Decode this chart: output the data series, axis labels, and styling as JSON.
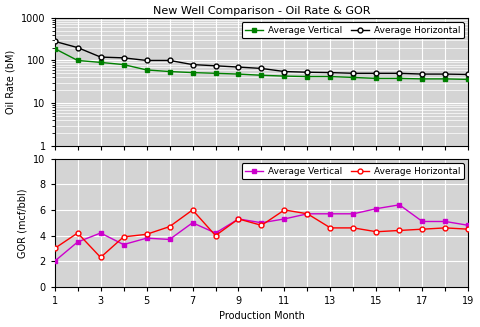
{
  "title": "New Well Comparison - Oil Rate & GOR",
  "months": [
    1,
    2,
    3,
    4,
    5,
    6,
    7,
    8,
    9,
    10,
    11,
    12,
    13,
    14,
    15,
    16,
    17,
    18,
    19
  ],
  "oil_vertical": [
    190,
    100,
    90,
    80,
    60,
    55,
    52,
    50,
    48,
    45,
    43,
    42,
    42,
    40,
    38,
    38,
    37,
    37,
    36
  ],
  "oil_horizontal": [
    280,
    200,
    120,
    115,
    100,
    100,
    80,
    75,
    70,
    65,
    55,
    53,
    52,
    50,
    50,
    50,
    48,
    48,
    47
  ],
  "gor_vertical": [
    2.0,
    3.5,
    4.2,
    3.3,
    3.8,
    3.7,
    5.0,
    4.2,
    5.3,
    5.0,
    5.3,
    5.7,
    5.7,
    5.7,
    6.1,
    6.4,
    5.1,
    5.1,
    4.8
  ],
  "gor_horizontal": [
    3.0,
    4.2,
    2.3,
    3.9,
    4.1,
    4.7,
    6.0,
    4.0,
    5.3,
    4.8,
    6.0,
    5.7,
    4.6,
    4.6,
    4.3,
    4.4,
    4.5,
    4.6,
    4.5
  ],
  "color_vertical": "#008000",
  "color_horizontal": "#000000",
  "color_gor_vertical": "#cc00cc",
  "color_gor_horizontal": "#ff0000",
  "oil_ylabel": "Oil Rate (bM)",
  "gor_ylabel": "GOR (mcf/bbl)",
  "xlabel": "Production Month",
  "xticks": [
    1,
    3,
    5,
    7,
    9,
    11,
    13,
    15,
    17,
    19
  ],
  "all_xticks": [
    1,
    2,
    3,
    4,
    5,
    6,
    7,
    8,
    9,
    10,
    11,
    12,
    13,
    14,
    15,
    16,
    17,
    18,
    19
  ],
  "oil_ylim": [
    1,
    1000
  ],
  "gor_ylim": [
    0,
    10
  ],
  "gor_yticks": [
    0,
    2,
    4,
    6,
    8,
    10
  ],
  "bg_color": "#d4d4d4",
  "fig_color": "#ffffff",
  "legend_vertical": "Average Vertical",
  "legend_horizontal": "Average Horizontal",
  "title_fontsize": 8,
  "axis_fontsize": 7,
  "tick_fontsize": 7,
  "legend_fontsize": 6.5
}
